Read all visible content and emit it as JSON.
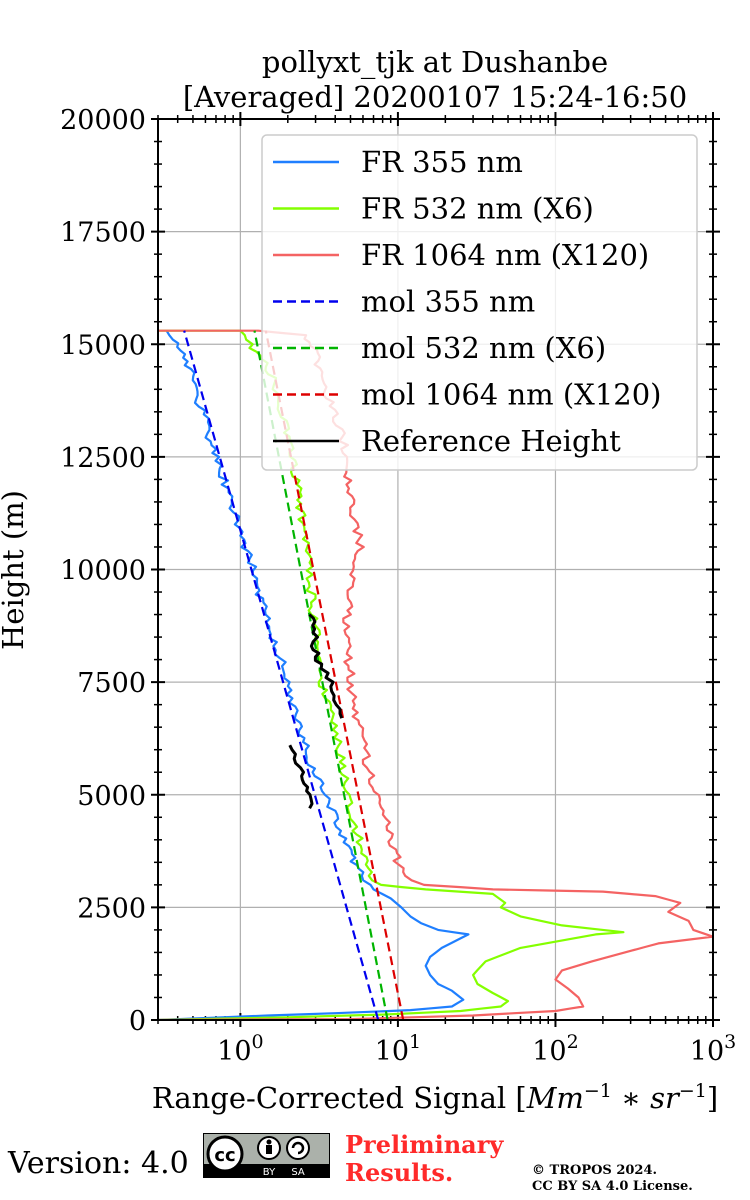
{
  "chart_data": {
    "type": "line",
    "title_line1": "pollyxt_tjk at Dushanbe",
    "title_line2": "[Averaged] 20200107 15:24-16:50",
    "xlabel_text": "Range-Corrected Signal [",
    "xlabel_unit": "Mm",
    "xlabel_exp1": "−1",
    "xlabel_op": " ∗ ",
    "xlabel_unit2": "sr",
    "xlabel_exp2": "−1",
    "xlabel_close": "]",
    "ylabel": "Height (m)",
    "xscale": "log",
    "xlim": [
      0.3,
      1000
    ],
    "ylim": [
      0,
      20000
    ],
    "xticks": [
      {
        "value": 1,
        "base": "10",
        "exp": "0"
      },
      {
        "value": 10,
        "base": "10",
        "exp": "1"
      },
      {
        "value": 100,
        "base": "10",
        "exp": "2"
      },
      {
        "value": 1000,
        "base": "10",
        "exp": "3"
      }
    ],
    "yticks": [
      {
        "value": 0,
        "label": "0"
      },
      {
        "value": 2500,
        "label": "2500"
      },
      {
        "value": 5000,
        "label": "5000"
      },
      {
        "value": 7500,
        "label": "7500"
      },
      {
        "value": 10000,
        "label": "10000"
      },
      {
        "value": 12500,
        "label": "12500"
      },
      {
        "value": 15000,
        "label": "15000"
      },
      {
        "value": 17500,
        "label": "17500"
      },
      {
        "value": 20000,
        "label": "20000"
      }
    ],
    "grid": true,
    "legend_position": "top-right",
    "series": [
      {
        "name": "FR 355 nm",
        "color": "#1f7fff",
        "dash": false,
        "noisy": true,
        "points": [
          [
            0.3,
            0
          ],
          [
            1.5,
            100
          ],
          [
            4,
            150
          ],
          [
            12,
            220
          ],
          [
            22,
            300
          ],
          [
            26,
            450
          ],
          [
            22,
            650
          ],
          [
            18,
            800
          ],
          [
            16,
            1000
          ],
          [
            15,
            1200
          ],
          [
            16,
            1400
          ],
          [
            19,
            1600
          ],
          [
            28,
            1900
          ],
          [
            18,
            2000
          ],
          [
            14,
            2150
          ],
          [
            12,
            2300
          ],
          [
            10.5,
            2500
          ],
          [
            9,
            2700
          ],
          [
            7,
            2900
          ],
          [
            5.8,
            3200
          ],
          [
            5.1,
            3600
          ],
          [
            4.3,
            4200
          ],
          [
            3.5,
            5000
          ],
          [
            2.9,
            5500
          ],
          [
            2.6,
            6000
          ],
          [
            2.3,
            6600
          ],
          [
            2.0,
            7500
          ],
          [
            1.7,
            8300
          ],
          [
            1.45,
            9000
          ],
          [
            1.25,
            9800
          ],
          [
            1.08,
            10500
          ],
          [
            0.95,
            11000
          ],
          [
            0.82,
            11800
          ],
          [
            0.7,
            12500
          ],
          [
            0.62,
            13100
          ],
          [
            0.55,
            13700
          ],
          [
            0.5,
            14200
          ],
          [
            0.45,
            14700
          ],
          [
            0.38,
            15100
          ],
          [
            0.34,
            15300
          ]
        ]
      },
      {
        "name": "FR 532 nm (X6)",
        "color": "#84ff00",
        "dash": false,
        "noisy": true,
        "points": [
          [
            0.3,
            0
          ],
          [
            2,
            60
          ],
          [
            8,
            120
          ],
          [
            25,
            200
          ],
          [
            45,
            300
          ],
          [
            50,
            420
          ],
          [
            40,
            600
          ],
          [
            32,
            800
          ],
          [
            30,
            1000
          ],
          [
            36,
            1300
          ],
          [
            60,
            1600
          ],
          [
            180,
            1900
          ],
          [
            270,
            1950
          ],
          [
            110,
            2100
          ],
          [
            60,
            2300
          ],
          [
            45,
            2500
          ],
          [
            48,
            2600
          ],
          [
            40,
            2800
          ],
          [
            15,
            2900
          ],
          [
            8,
            3000
          ],
          [
            6.5,
            3200
          ],
          [
            6,
            3700
          ],
          [
            5.5,
            4200
          ],
          [
            4.8,
            5000
          ],
          [
            4.2,
            6000
          ],
          [
            3.8,
            6800
          ],
          [
            3.3,
            7500
          ],
          [
            3.1,
            8300
          ],
          [
            2.9,
            9000
          ],
          [
            2.75,
            9800
          ],
          [
            2.6,
            10500
          ],
          [
            2.45,
            11200
          ],
          [
            2.3,
            11800
          ],
          [
            2.1,
            12600
          ],
          [
            1.9,
            13300
          ],
          [
            1.7,
            14000
          ],
          [
            1.5,
            14500
          ],
          [
            1.15,
            15000
          ],
          [
            1.0,
            15300
          ],
          [
            0.3,
            15300
          ]
        ]
      },
      {
        "name": "FR 1064 nm (X120)",
        "color": "#f46363",
        "dash": false,
        "noisy": true,
        "points": [
          [
            0.3,
            0
          ],
          [
            5,
            20
          ],
          [
            30,
            100
          ],
          [
            100,
            200
          ],
          [
            150,
            300
          ],
          [
            140,
            500
          ],
          [
            120,
            700
          ],
          [
            100,
            900
          ],
          [
            110,
            1100
          ],
          [
            170,
            1300
          ],
          [
            450,
            1700
          ],
          [
            1000,
            1850
          ],
          [
            750,
            2000
          ],
          [
            700,
            2200
          ],
          [
            520,
            2400
          ],
          [
            620,
            2600
          ],
          [
            430,
            2750
          ],
          [
            200,
            2850
          ],
          [
            40,
            2900
          ],
          [
            15,
            3000
          ],
          [
            11,
            3200
          ],
          [
            9.5,
            3700
          ],
          [
            8.5,
            4300
          ],
          [
            7.5,
            4900
          ],
          [
            6.5,
            5600
          ],
          [
            5.8,
            6300
          ],
          [
            5.2,
            7000
          ],
          [
            5.0,
            7600
          ],
          [
            4.7,
            8300
          ],
          [
            4.8,
            9000
          ],
          [
            5.2,
            9800
          ],
          [
            5.8,
            10500
          ],
          [
            5.3,
            11200
          ],
          [
            4.9,
            11800
          ],
          [
            4.8,
            12500
          ],
          [
            4.2,
            13200
          ],
          [
            3.6,
            13800
          ],
          [
            3.3,
            14300
          ],
          [
            3.0,
            14800
          ],
          [
            2.6,
            15200
          ],
          [
            1.3,
            15300
          ],
          [
            0.3,
            15300
          ]
        ]
      },
      {
        "name": "mol 355 nm",
        "color": "#0000ee",
        "dash": true,
        "noisy": false,
        "points": [
          [
            7.5,
            0
          ],
          [
            0.44,
            15300
          ]
        ]
      },
      {
        "name": "mol 532 nm (X6)",
        "color": "#00b400",
        "dash": true,
        "noisy": false,
        "points": [
          [
            8.6,
            0
          ],
          [
            1.23,
            15300
          ]
        ]
      },
      {
        "name": "mol 1064 nm (X120)",
        "color": "#dd0000",
        "dash": true,
        "noisy": false,
        "points": [
          [
            10.8,
            0
          ],
          [
            1.45,
            15300
          ]
        ]
      },
      {
        "name": "Reference Height",
        "color": "#000000",
        "dash": false,
        "noisy": true,
        "width": 3,
        "segments": [
          [
            [
              2.1,
              6100
            ],
            [
              2.2,
              5800
            ],
            [
              2.4,
              5500
            ],
            [
              2.55,
              5250
            ],
            [
              2.65,
              5000
            ],
            [
              2.75,
              4700
            ]
          ],
          [
            [
              2.85,
              9000
            ],
            [
              3.0,
              8600
            ],
            [
              2.95,
              8300
            ],
            [
              3.2,
              7900
            ],
            [
              3.6,
              7600
            ],
            [
              3.9,
              7300
            ],
            [
              4.1,
              7000
            ],
            [
              4.4,
              6700
            ]
          ]
        ]
      }
    ]
  },
  "footer": {
    "version": "Version: 4.0",
    "badge_cc": "cc",
    "badge_by": "BY",
    "badge_sa": "SA",
    "prelim_line1": "Preliminary",
    "prelim_line2": "Results.",
    "copyright_line1": "© TROPOS 2024.",
    "copyright_line2": "CC BY SA 4.0 License."
  }
}
